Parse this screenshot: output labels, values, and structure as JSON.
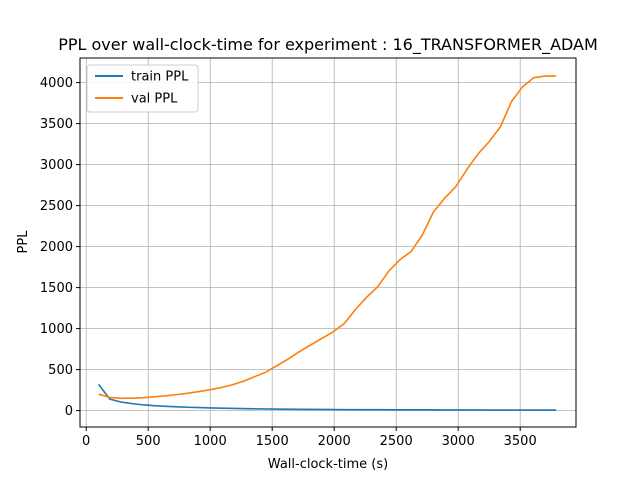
{
  "chart_data": {
    "type": "line",
    "title": "PPL over wall-clock-time for experiment : 16_TRANSFORMER_ADAM",
    "xlabel": "Wall-clock-time (s)",
    "ylabel": "PPL",
    "xlim": [
      -50,
      3950
    ],
    "ylim": [
      -200,
      4300
    ],
    "xticks": [
      0,
      500,
      1000,
      1500,
      2000,
      2500,
      3000,
      3500
    ],
    "yticks": [
      0,
      500,
      1000,
      1500,
      2000,
      2500,
      3000,
      3500,
      4000
    ],
    "grid": true,
    "legend_position": "top-left",
    "series": [
      {
        "name": "train PPL",
        "color": "#1f77b4",
        "x": [
          100,
          190,
          280,
          370,
          460,
          550,
          640,
          730,
          820,
          910,
          1000,
          1100,
          1200,
          1300,
          1400,
          1500,
          1700,
          1900,
          2100,
          2300,
          2500,
          2700,
          2900,
          3100,
          3300,
          3500,
          3700,
          3790
        ],
        "y": [
          320,
          140,
          105,
          85,
          70,
          60,
          52,
          46,
          41,
          37,
          33,
          29,
          26,
          23,
          21,
          19,
          16,
          14,
          12,
          11,
          10,
          9,
          8,
          8,
          7,
          7,
          6,
          6
        ]
      },
      {
        "name": "val PPL",
        "color": "#ff7f0e",
        "x": [
          100,
          190,
          280,
          370,
          460,
          550,
          640,
          730,
          820,
          910,
          1000,
          1090,
          1180,
          1270,
          1360,
          1450,
          1540,
          1630,
          1720,
          1810,
          1900,
          1990,
          2080,
          2170,
          2260,
          2350,
          2440,
          2530,
          2620,
          2710,
          2800,
          2890,
          2980,
          3070,
          3160,
          3250,
          3340,
          3430,
          3520,
          3610,
          3700,
          3790
        ],
        "y": [
          200,
          160,
          150,
          152,
          158,
          168,
          180,
          195,
          212,
          232,
          255,
          282,
          315,
          360,
          415,
          470,
          550,
          630,
          720,
          800,
          880,
          960,
          1060,
          1230,
          1380,
          1510,
          1700,
          1840,
          1940,
          2140,
          2420,
          2590,
          2730,
          2940,
          3130,
          3280,
          3460,
          3770,
          3950,
          4060,
          4080,
          4080
        ]
      }
    ]
  }
}
